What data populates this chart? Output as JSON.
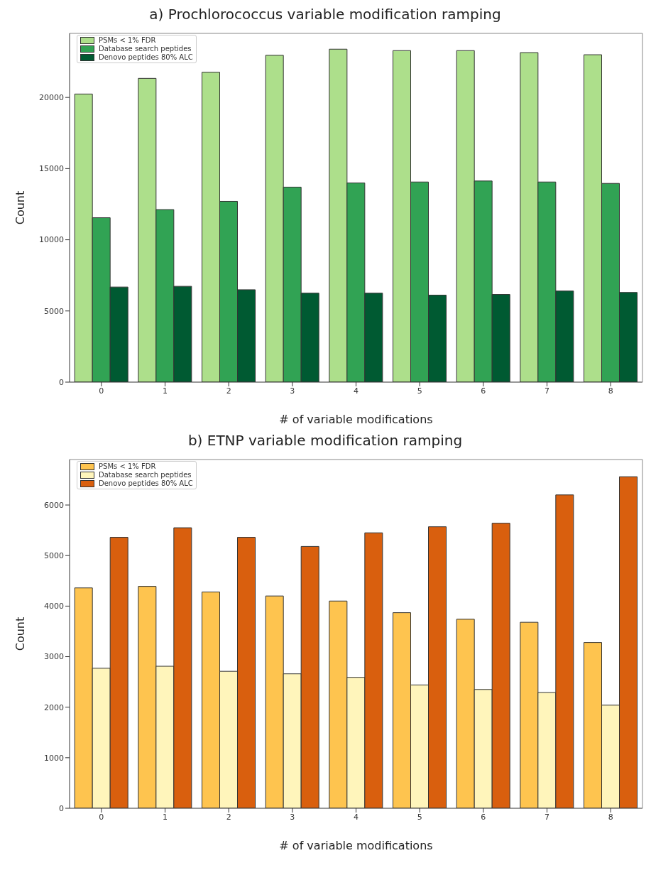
{
  "chart_data": [
    {
      "type": "bar",
      "title": "a) Prochlorococcus variable modification ramping",
      "xlabel": "# of variable modifications",
      "ylabel": "Count",
      "categories": [
        "0",
        "1",
        "2",
        "3",
        "4",
        "5",
        "6",
        "7",
        "8"
      ],
      "ylim": [
        0,
        24500
      ],
      "yticks": [
        0,
        5000,
        10000,
        15000,
        20000
      ],
      "grid": false,
      "legend": "top left",
      "series": [
        {
          "name": "PSMs < 1% FDR",
          "color": "#addf8b",
          "values": [
            20240,
            21340,
            21770,
            22960,
            23390,
            23290,
            23290,
            23150,
            23000
          ]
        },
        {
          "name": "Database search peptides",
          "color": "#31a354",
          "values": [
            11550,
            12120,
            12700,
            13700,
            13990,
            14060,
            14130,
            14060,
            13960
          ]
        },
        {
          "name": "Denovo peptides 80% ALC",
          "color": "#005a32",
          "values": [
            6680,
            6730,
            6490,
            6250,
            6250,
            6110,
            6160,
            6400,
            6300
          ]
        }
      ]
    },
    {
      "type": "bar",
      "title": "b) ETNP variable modification ramping",
      "xlabel": "# of variable modifications",
      "ylabel": "Count",
      "categories": [
        "0",
        "1",
        "2",
        "3",
        "4",
        "5",
        "6",
        "7",
        "8"
      ],
      "ylim": [
        0,
        6900
      ],
      "yticks": [
        0,
        1000,
        2000,
        3000,
        4000,
        5000,
        6000
      ],
      "grid": false,
      "legend": "top left",
      "series": [
        {
          "name": "PSMs < 1% FDR",
          "color": "#fec44f",
          "values": [
            4360,
            4390,
            4280,
            4200,
            4100,
            3870,
            3740,
            3680,
            3280
          ]
        },
        {
          "name": "Database search peptides",
          "color": "#fff5bb",
          "values": [
            2770,
            2810,
            2710,
            2660,
            2590,
            2440,
            2350,
            2290,
            2040
          ]
        },
        {
          "name": "Denovo peptides 80% ALC",
          "color": "#d95f0e",
          "values": [
            5360,
            5550,
            5360,
            5180,
            5450,
            5570,
            5640,
            6200,
            6560
          ]
        }
      ]
    }
  ]
}
